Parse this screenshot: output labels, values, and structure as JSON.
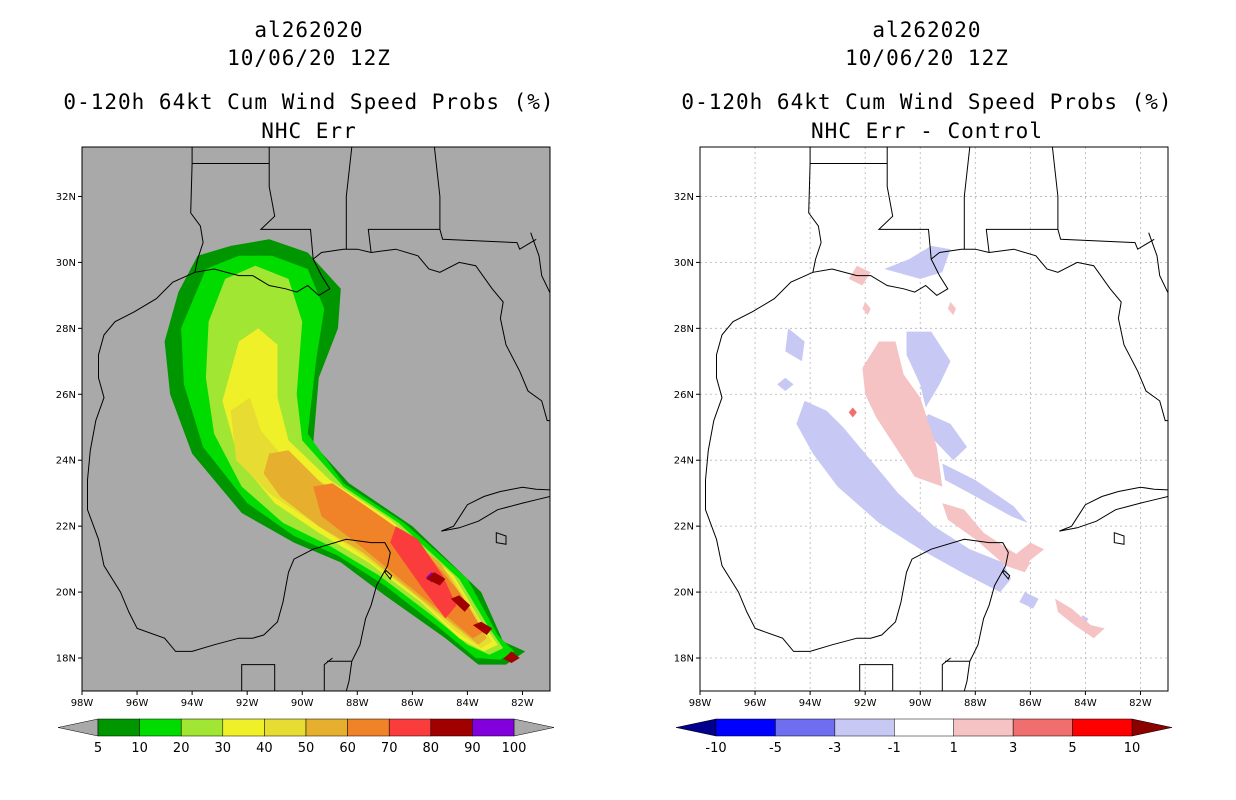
{
  "left": {
    "storm_id": "al262020",
    "init_time": "10/06/20 12Z",
    "product": "0-120h 64kt Cum Wind Speed Probs (%)",
    "subtitle": "NHC Err",
    "colors": {
      "background": "#a9a9a9",
      "land_outline": "#000000"
    },
    "colorbar": {
      "under_color": "#a9a9a9",
      "over_color": "#a9a9a9",
      "bins": [
        {
          "color": "#009600"
        },
        {
          "color": "#00dc00"
        },
        {
          "color": "#a0e632"
        },
        {
          "color": "#f0f028"
        },
        {
          "color": "#e6dc32"
        },
        {
          "color": "#e6af2d"
        },
        {
          "color": "#f08228"
        },
        {
          "color": "#fa3c3c"
        },
        {
          "color": "#a00000"
        },
        {
          "color": "#8200dc"
        }
      ],
      "labels": [
        "5",
        "10",
        "20",
        "30",
        "40",
        "50",
        "60",
        "70",
        "80",
        "90",
        "100"
      ]
    }
  },
  "right": {
    "storm_id": "al262020",
    "init_time": "10/06/20 12Z",
    "product": "0-120h 64kt Cum Wind Speed Probs (%)",
    "subtitle": "NHC Err - Control",
    "colors": {
      "background": "#ffffff",
      "grid": "#b4b4b4",
      "land_outline": "#000000"
    },
    "colorbar": {
      "under_color": "#00008c",
      "over_color": "#8c0000",
      "bins": [
        {
          "color": "#0000ff"
        },
        {
          "color": "#6e6ef0"
        },
        {
          "color": "#c8c8f5"
        },
        {
          "color": "#ffffff"
        },
        {
          "color": "#f5c3c3"
        },
        {
          "color": "#f06e6e"
        },
        {
          "color": "#ff0000"
        }
      ],
      "labels": [
        "-10",
        "-5",
        "-3",
        "-1",
        "1",
        "3",
        "5",
        "10"
      ]
    }
  },
  "axes": {
    "lon_ticks": [
      "98W",
      "96W",
      "94W",
      "92W",
      "90W",
      "88W",
      "86W",
      "84W",
      "82W"
    ],
    "lat_ticks": [
      "18N",
      "20N",
      "22N",
      "24N",
      "26N",
      "28N",
      "30N",
      "32N"
    ],
    "lon_range_deg": [
      -98,
      -81
    ],
    "lat_range_deg": [
      17,
      33.5
    ]
  },
  "probability_contours_percent": [
    {
      "level": 5,
      "color": "#009600"
    },
    {
      "level": 10,
      "color": "#00dc00"
    },
    {
      "level": 20,
      "color": "#a0e632"
    },
    {
      "level": 30,
      "color": "#f0f028"
    },
    {
      "level": 40,
      "color": "#e6dc32"
    },
    {
      "level": 50,
      "color": "#e6af2d"
    },
    {
      "level": 60,
      "color": "#f08228"
    },
    {
      "level": 70,
      "color": "#fa3c3c"
    },
    {
      "level": 80,
      "color": "#a00000"
    },
    {
      "level": 90,
      "color": "#8200dc"
    }
  ],
  "difference_areas": {
    "negative_color": "#c8c8f5",
    "positive_color": "#f5c3c3",
    "positive_max_color": "#f06e6e"
  }
}
